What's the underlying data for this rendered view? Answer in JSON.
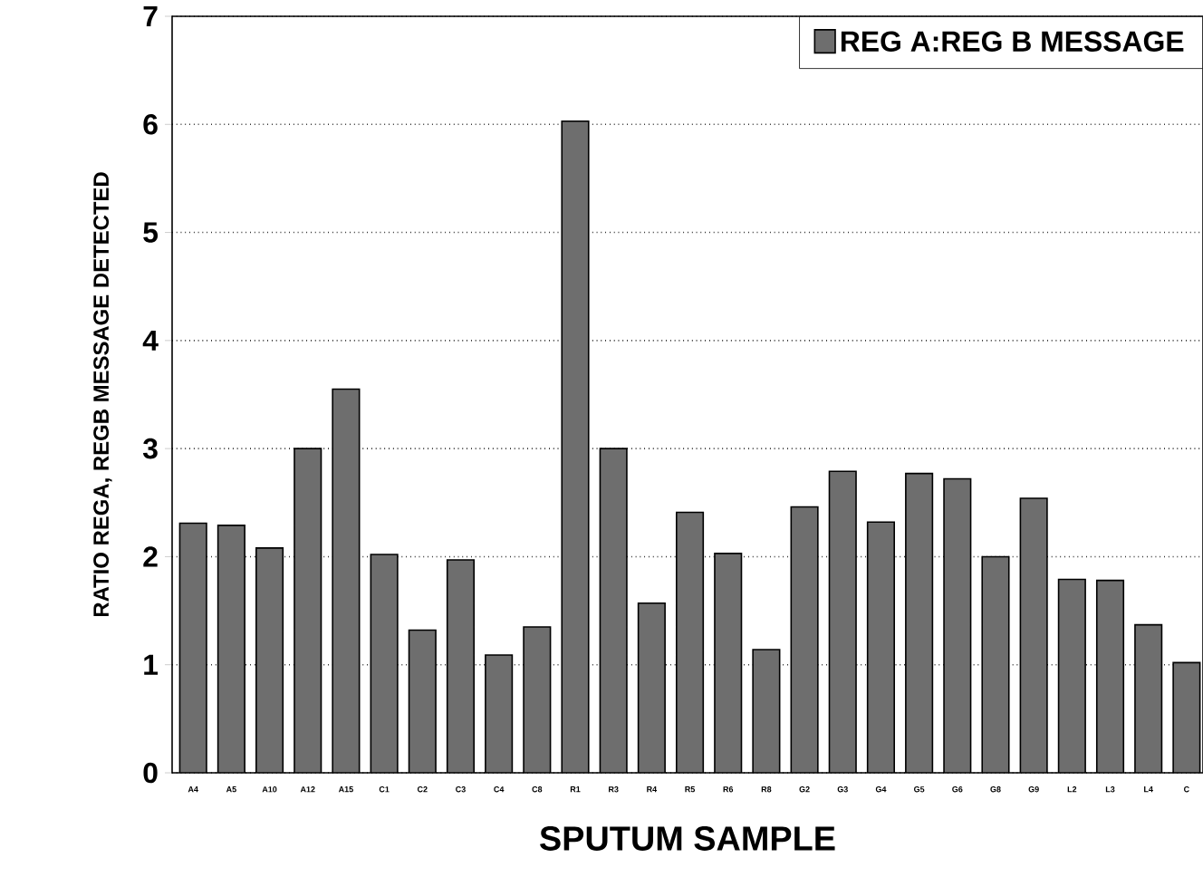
{
  "chart_data": {
    "type": "bar",
    "xlabel": "SPUTUM SAMPLE",
    "ylabel": "RATIO REGA, REGB MESSAGE DETECTED",
    "categories": [
      "A4",
      "A5",
      "A10",
      "A12",
      "A15",
      "C1",
      "C2",
      "C3",
      "C4",
      "C8",
      "R1",
      "R3",
      "R4",
      "R5",
      "R6",
      "R8",
      "G2",
      "G3",
      "G4",
      "G5",
      "G6",
      "G8",
      "G9",
      "L2",
      "L3",
      "L4",
      "C"
    ],
    "series": [
      {
        "name": "REG A:REG B MESSAGE",
        "color": "#6e6e6e",
        "values": [
          2.31,
          2.29,
          2.08,
          3.0,
          3.55,
          2.02,
          1.32,
          1.97,
          1.09,
          1.35,
          6.03,
          3.0,
          1.57,
          2.41,
          2.03,
          1.14,
          2.46,
          2.79,
          2.32,
          2.77,
          2.72,
          2.0,
          2.54,
          1.79,
          1.78,
          1.37,
          1.02
        ]
      }
    ],
    "ylim": [
      0,
      7
    ],
    "yticks": [
      0,
      1,
      2,
      3,
      4,
      5,
      6,
      7
    ],
    "grid": "y",
    "legend": "top right"
  }
}
